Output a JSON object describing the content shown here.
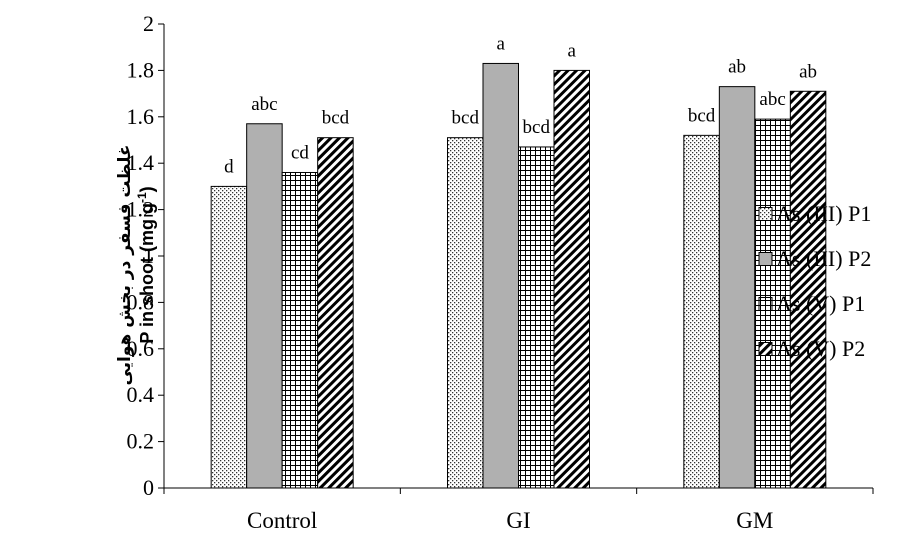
{
  "chart_data": {
    "type": "bar",
    "categories": [
      "Control",
      "GI",
      "GM"
    ],
    "series": [
      {
        "name": "As (III) P1",
        "pattern": "dots",
        "values": [
          1.3,
          1.51,
          1.52
        ]
      },
      {
        "name": "As (III) P2",
        "pattern": "gray",
        "values": [
          1.57,
          1.83,
          1.73
        ]
      },
      {
        "name": "As (V) P1",
        "pattern": "grid",
        "values": [
          1.36,
          1.47,
          1.59
        ]
      },
      {
        "name": "As (V) P2",
        "pattern": "diagonal",
        "values": [
          1.51,
          1.8,
          1.71
        ]
      }
    ],
    "significance_labels": [
      [
        "d",
        "abc",
        "cd",
        "bcd"
      ],
      [
        "bcd",
        "a",
        "bcd",
        "a"
      ],
      [
        "bcd",
        "ab",
        "abc",
        "ab"
      ]
    ],
    "ylabel_fa": "غلظت فسفر در بخش هوایی",
    "ylabel_en": "P in shoot (mg g",
    "ylabel_en_sup": "-1",
    "ylabel_en_close": ")",
    "ylim": [
      0,
      2
    ],
    "yticks": [
      "0",
      "0.2",
      "0.4",
      "0.6",
      "0.8",
      "1",
      "1.2",
      "1.4",
      "1.6",
      "1.8",
      "2"
    ],
    "legend_position": "right",
    "grid": false
  }
}
